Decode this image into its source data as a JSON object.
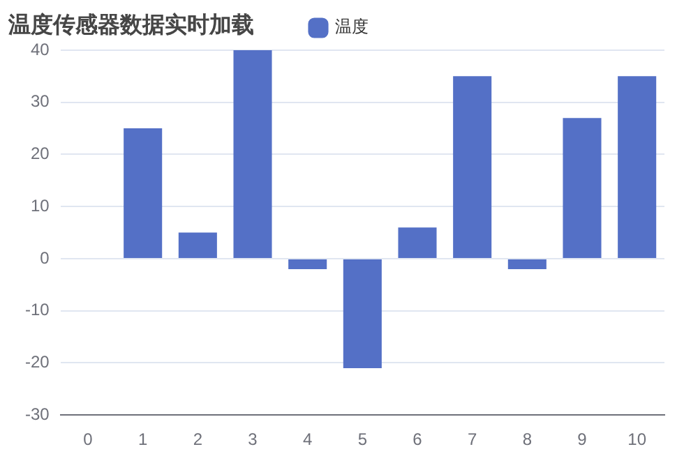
{
  "chart_data": {
    "type": "bar",
    "title": "温度传感器数据实时加载",
    "categories": [
      "0",
      "1",
      "2",
      "3",
      "4",
      "5",
      "6",
      "7",
      "8",
      "9",
      "10"
    ],
    "series": [
      {
        "name": "温度",
        "color": "#5470c6",
        "values": [
          0,
          25,
          5,
          40,
          -2,
          -21,
          6,
          35,
          -2,
          27,
          35
        ]
      }
    ],
    "ylim": [
      -30,
      40
    ],
    "yticks": [
      -30,
      -20,
      -10,
      0,
      10,
      20,
      30,
      40
    ],
    "grid": "y",
    "legend": "top"
  }
}
